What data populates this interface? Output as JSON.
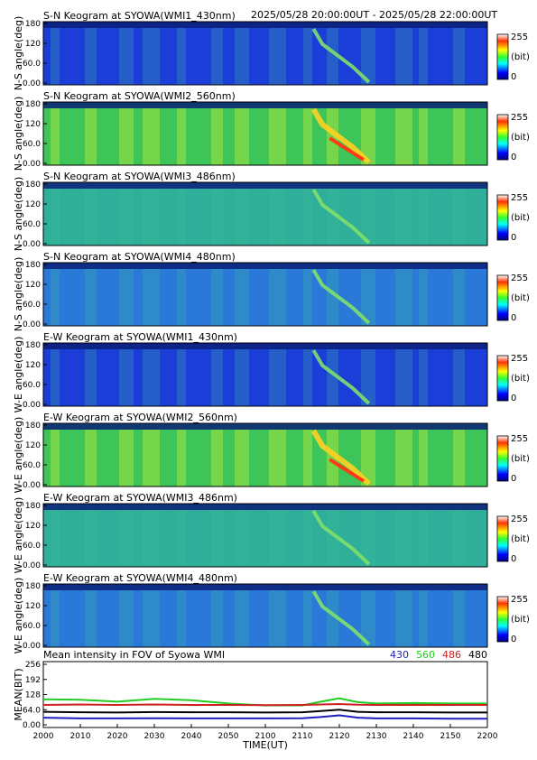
{
  "header": {
    "time_range": "2025/05/28 20:00:00UT - 2025/05/28 22:00:00UT"
  },
  "colorbar": {
    "max_label": "255",
    "unit_label": "(bit)",
    "min_label": "0"
  },
  "chart_data": [
    {
      "type": "heatmap",
      "title": "S-N Keogram at SYOWA(WMI1_430nm)",
      "ylabel": "N-S angle(deg)",
      "yticks": [
        "180",
        "120",
        "60.0",
        "0.00"
      ],
      "ylim": [
        0,
        180
      ],
      "intensity_level": "low",
      "description": "mostly dark blue; faint diagonal auroral arc near 21:15-21:25"
    },
    {
      "type": "heatmap",
      "title": "S-N Keogram at SYOWA(WMI2_560nm)",
      "ylabel": "N-S angle(deg)",
      "yticks": [
        "180",
        "120",
        "60.0",
        "0.00"
      ],
      "ylim": [
        0,
        180
      ],
      "intensity_level": "high",
      "description": "green/yellow structures with bright red-yellow arc near 21:15-21:30"
    },
    {
      "type": "heatmap",
      "title": "S-N Keogram at SYOWA(WMI3_486nm)",
      "ylabel": "N-S angle(deg)",
      "yticks": [
        "180",
        "120",
        "60.0",
        "0.00"
      ],
      "ylim": [
        0,
        180
      ],
      "intensity_level": "medium"
    },
    {
      "type": "heatmap",
      "title": "S-N Keogram at SYOWA(WMI4_480nm)",
      "ylabel": "N-S angle(deg)",
      "yticks": [
        "180",
        "120",
        "60.0",
        "0.00"
      ],
      "ylim": [
        0,
        180
      ],
      "intensity_level": "low-medium"
    },
    {
      "type": "heatmap",
      "title": "E-W Keogram at SYOWA(WMI1_430nm)",
      "ylabel": "W-E angle(deg)",
      "yticks": [
        "180",
        "120",
        "60.0",
        "0.00"
      ],
      "ylim": [
        0,
        180
      ],
      "intensity_level": "low"
    },
    {
      "type": "heatmap",
      "title": "E-W Keogram at SYOWA(WMI2_560nm)",
      "ylabel": "W-E angle(deg)",
      "yticks": [
        "180",
        "120",
        "60.0",
        "0.00"
      ],
      "ylim": [
        0,
        180
      ],
      "intensity_level": "high"
    },
    {
      "type": "heatmap",
      "title": "E-W Keogram at SYOWA(WMI3_486nm)",
      "ylabel": "W-E angle(deg)",
      "yticks": [
        "180",
        "120",
        "60.0",
        "0.00"
      ],
      "ylim": [
        0,
        180
      ],
      "intensity_level": "medium"
    },
    {
      "type": "heatmap",
      "title": "E-W Keogram at SYOWA(WMI4_480nm)",
      "ylabel": "W-E angle(deg)",
      "yticks": [
        "180",
        "120",
        "60.0",
        "0.00"
      ],
      "ylim": [
        0,
        180
      ],
      "intensity_level": "low-medium"
    },
    {
      "type": "line",
      "title": "Mean intensity in FOV of Syowa WMI",
      "xlabel": "TIME(UT)",
      "ylabel": "MEAN(BIT)",
      "xticks": [
        "2000",
        "2010",
        "2020",
        "2030",
        "2040",
        "2050",
        "2100",
        "2110",
        "2120",
        "2130",
        "2140",
        "2150",
        "2200"
      ],
      "yticks": [
        "256",
        "192",
        "128",
        "64.0",
        "0.00"
      ],
      "ylim": [
        0,
        256
      ],
      "x_minutes": [
        0,
        10,
        20,
        30,
        40,
        50,
        60,
        70,
        75,
        80,
        85,
        90,
        100,
        110,
        120
      ],
      "series": [
        {
          "name": "430",
          "color": "#1f1fbf",
          "values": [
            30,
            27,
            27,
            28,
            27,
            27,
            27,
            28,
            33,
            40,
            30,
            27,
            27,
            26,
            26
          ]
        },
        {
          "name": "560",
          "color": "#22cc22",
          "values": [
            108,
            106,
            98,
            110,
            104,
            90,
            82,
            82,
            98,
            112,
            96,
            90,
            92,
            90,
            90
          ]
        },
        {
          "name": "486",
          "color": "#cc2222",
          "values": [
            84,
            86,
            84,
            86,
            84,
            84,
            83,
            84,
            86,
            88,
            85,
            84,
            84,
            84,
            84
          ]
        },
        {
          "name": "480",
          "color": "#000000",
          "values": [
            55,
            53,
            52,
            54,
            53,
            53,
            52,
            53,
            58,
            64,
            55,
            53,
            53,
            52,
            52
          ]
        }
      ]
    }
  ]
}
